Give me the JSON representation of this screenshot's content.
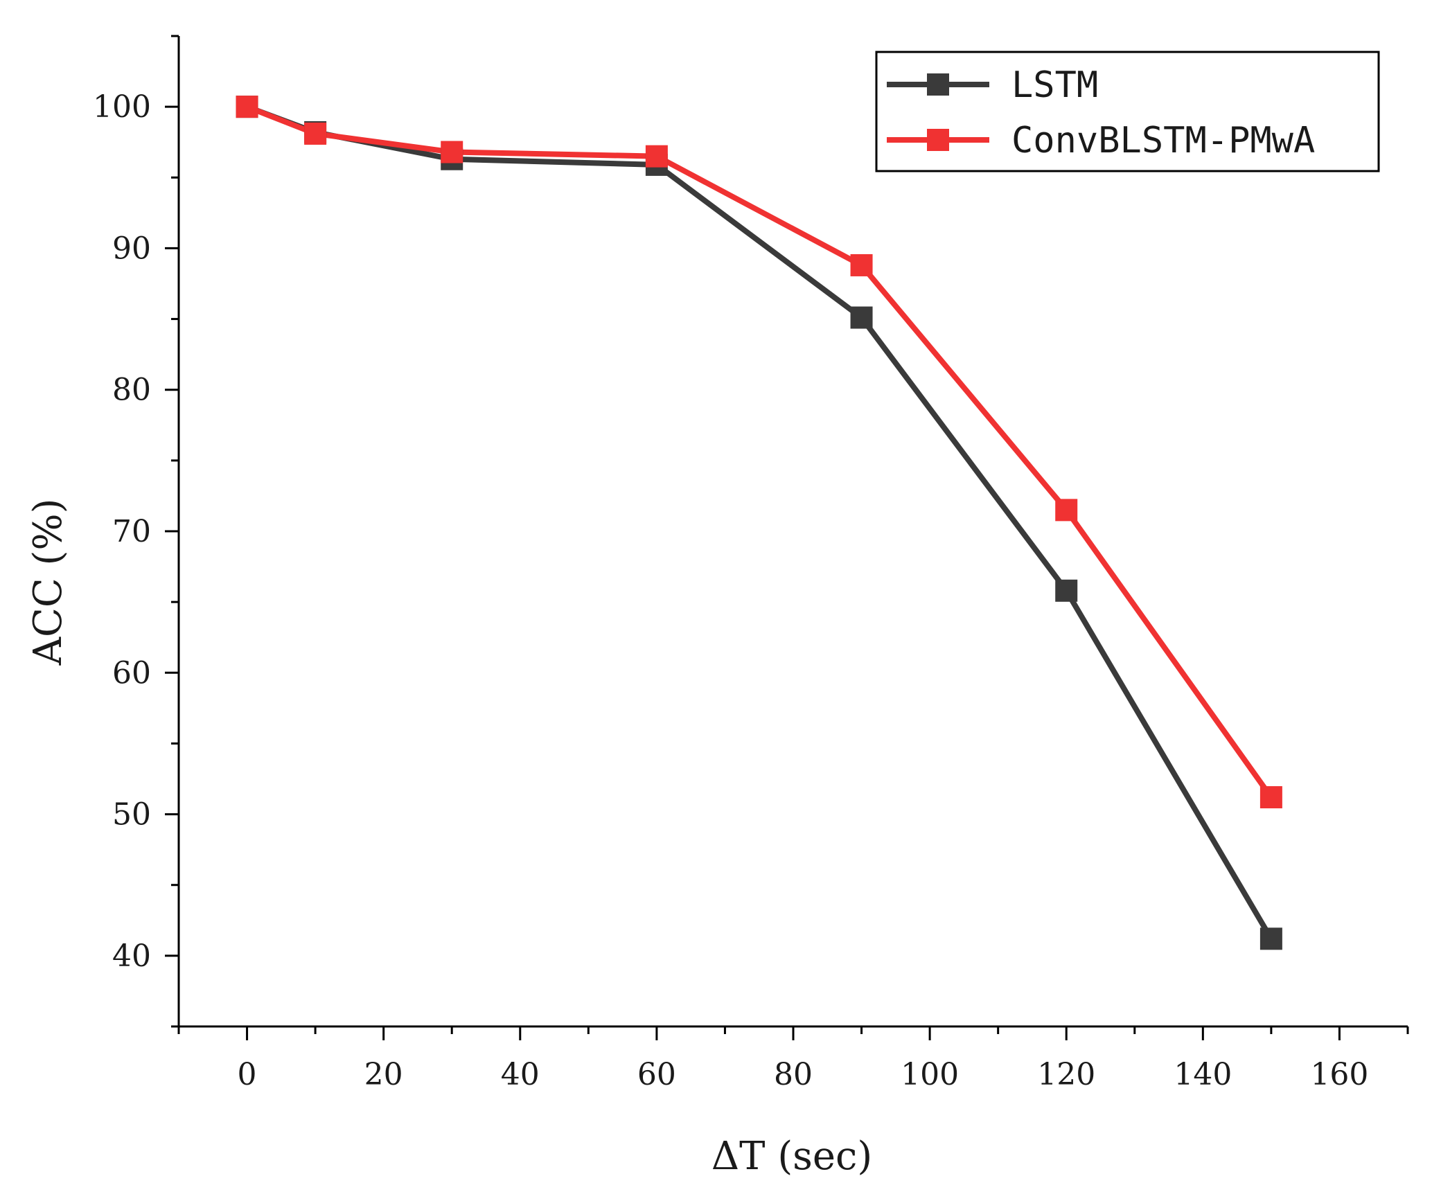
{
  "chart_data": {
    "type": "line",
    "title": "",
    "xlabel": "ΔT (sec)",
    "ylabel": "ACC (%)",
    "xlim": [
      -10,
      170
    ],
    "ylim": [
      35,
      105
    ],
    "x_ticks": [
      0,
      20,
      40,
      60,
      80,
      100,
      120,
      140,
      160
    ],
    "y_ticks": [
      40,
      50,
      60,
      70,
      80,
      90,
      100
    ],
    "x": [
      0,
      10,
      30,
      60,
      90,
      120,
      150
    ],
    "series": [
      {
        "name": "LSTM",
        "color": "#3a3a3a",
        "values": [
          100,
          98.2,
          96.3,
          95.9,
          85.1,
          65.8,
          41.2
        ]
      },
      {
        "name": "ConvBLSTM-PMwA",
        "color": "#f03232",
        "values": [
          100,
          98.1,
          96.8,
          96.5,
          88.8,
          71.5,
          51.2
        ]
      }
    ],
    "legend": "top-right",
    "grid": false
  }
}
